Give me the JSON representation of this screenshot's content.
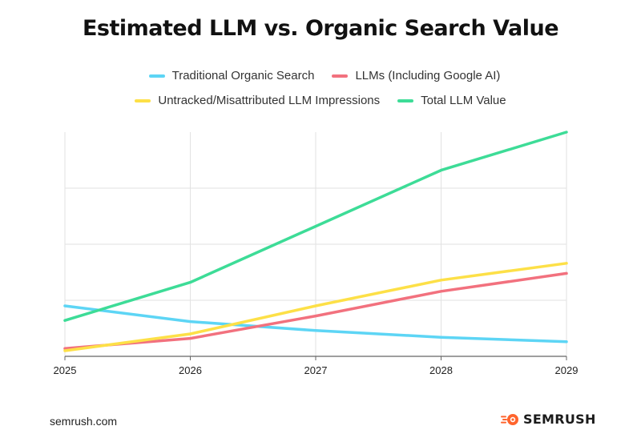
{
  "chart_data": {
    "type": "line",
    "title": "Estimated LLM vs. Organic Search Value",
    "x": [
      "2025",
      "2026",
      "2027",
      "2028",
      "2029"
    ],
    "xlabel": "",
    "ylabel": "",
    "ylim": [
      0,
      100
    ],
    "y_tick_labels": false,
    "grid": true,
    "legend_position": "top-center",
    "series": [
      {
        "name": "Traditional Organic Search",
        "color": "#5dd5f5",
        "values": [
          22.5,
          15.5,
          11.5,
          8.5,
          6.5
        ]
      },
      {
        "name": "LLMs (Including Google AI)",
        "color": "#f2717e",
        "values": [
          3.5,
          8,
          18,
          29,
          37
        ]
      },
      {
        "name": "Untracked/Misattributed LLM Impressions",
        "color": "#fde047",
        "values": [
          2.5,
          10,
          22.5,
          34,
          41.5
        ]
      },
      {
        "name": "Total LLM Value",
        "color": "#3ddc97",
        "values": [
          16,
          33,
          58,
          83,
          100
        ]
      }
    ]
  },
  "footer": {
    "source": "semrush.com",
    "brand": "SEMRUSH",
    "brand_color": "#ff642d",
    "brand_icon": "fireball-logo-icon"
  }
}
